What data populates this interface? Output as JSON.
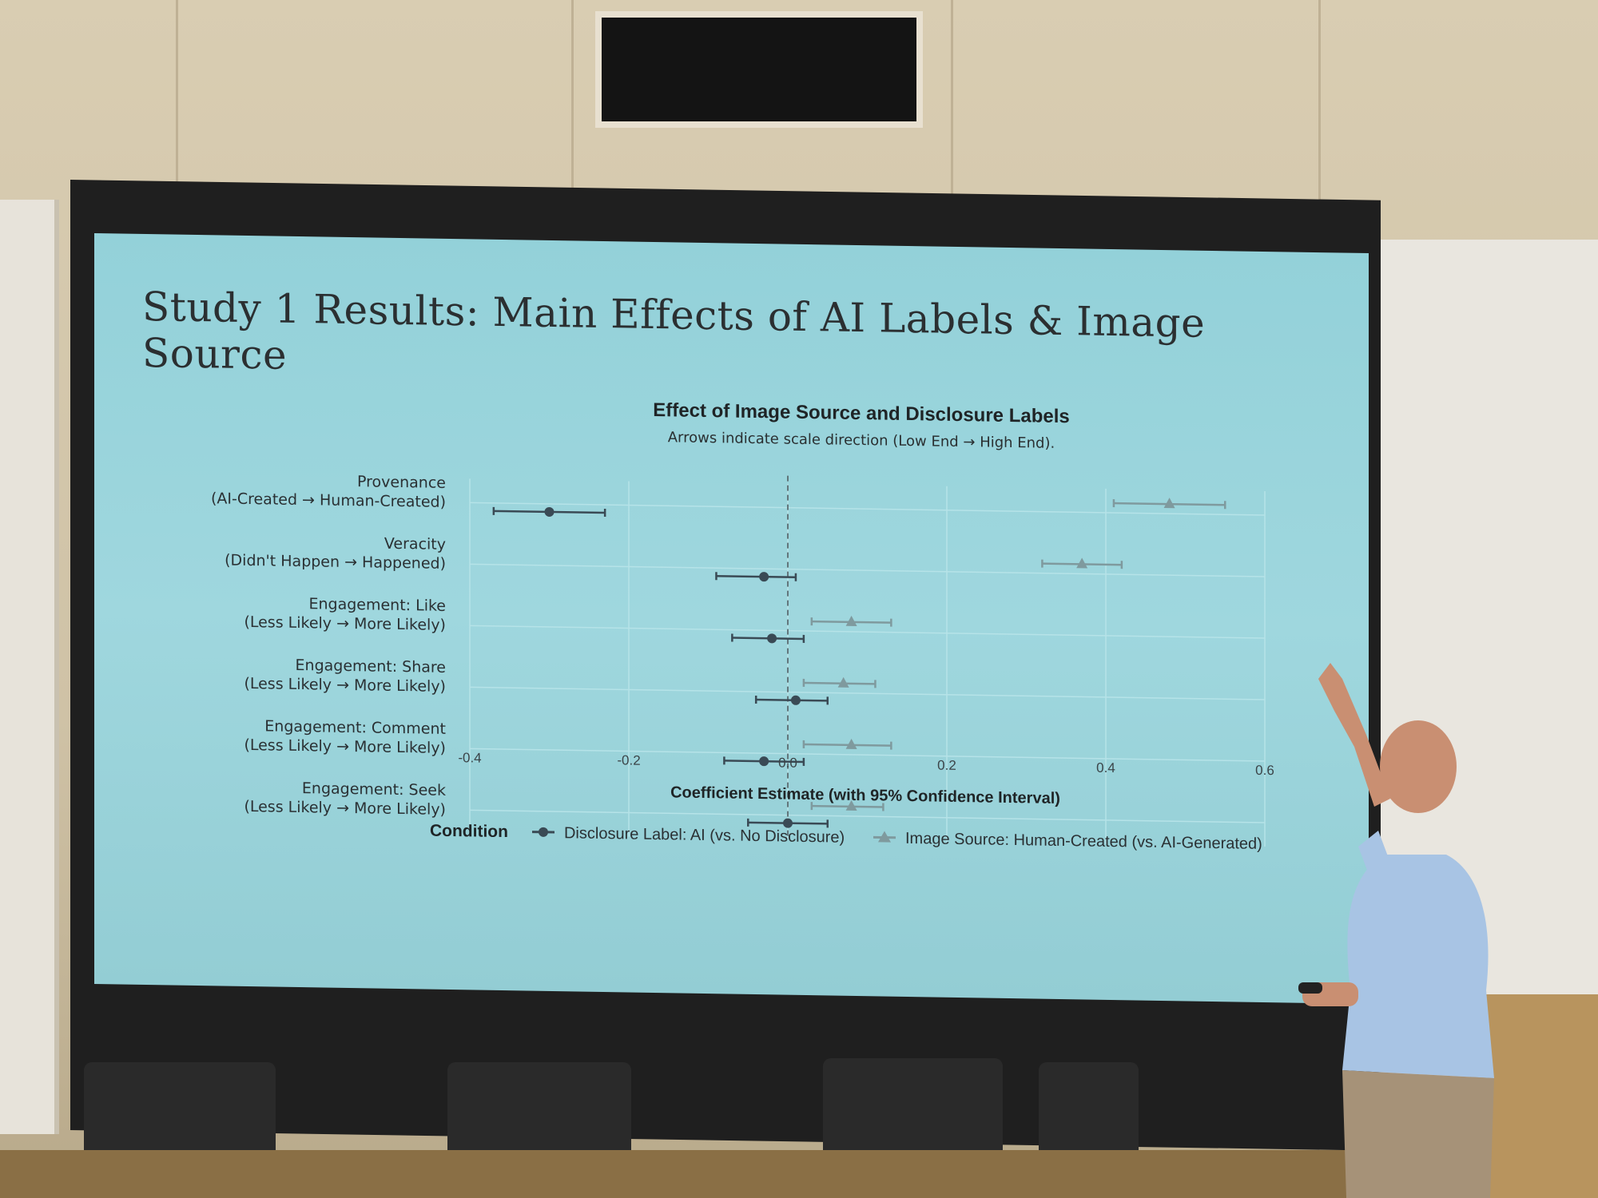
{
  "slide": {
    "title": "Study 1 Results: Main Effects of AI Labels & Image Source"
  },
  "chart_data": {
    "type": "scatter",
    "title": "Effect of Image Source and Disclosure Labels",
    "subtitle": "Arrows indicate scale direction (Low End → High End).",
    "xlabel": "Coefficient Estimate (with 95% Confidence Interval)",
    "xlim": [
      -0.4,
      0.6
    ],
    "xticks": [
      "-0.4",
      "-0.2",
      "0.0",
      "0.2",
      "0.4",
      "0.6"
    ],
    "xtick_values": [
      -0.4,
      -0.2,
      0.0,
      0.2,
      0.4,
      0.6
    ],
    "reference_line": 0.0,
    "grid": true,
    "categories": [
      {
        "name": "Provenance",
        "scale": "(AI-Created → Human-Created)"
      },
      {
        "name": "Veracity",
        "scale": "(Didn't Happen → Happened)"
      },
      {
        "name": "Engagement: Like",
        "scale": "(Less Likely → More Likely)"
      },
      {
        "name": "Engagement: Share",
        "scale": "(Less Likely → More Likely)"
      },
      {
        "name": "Engagement: Comment",
        "scale": "(Less Likely → More Likely)"
      },
      {
        "name": "Engagement: Seek",
        "scale": "(Less Likely → More Likely)"
      }
    ],
    "legend_title": "Condition",
    "legend_position": "bottom",
    "series": [
      {
        "name": "Disclosure Label: AI (vs. No Disclosure)",
        "marker": "circle",
        "color": "#3a4a55",
        "estimates": [
          -0.3,
          -0.03,
          -0.02,
          0.01,
          -0.03,
          0.0
        ],
        "ci_low": [
          -0.37,
          -0.09,
          -0.07,
          -0.04,
          -0.08,
          -0.05
        ],
        "ci_high": [
          -0.23,
          0.01,
          0.02,
          0.05,
          0.02,
          0.05
        ]
      },
      {
        "name": "Image Source: Human-Created (vs. AI-Generated)",
        "marker": "triangle",
        "color": "#7f9a9e",
        "estimates": [
          0.48,
          0.37,
          0.08,
          0.07,
          0.08,
          0.08
        ],
        "ci_low": [
          0.41,
          0.32,
          0.03,
          0.02,
          0.02,
          0.03
        ],
        "ci_high": [
          0.55,
          0.42,
          0.13,
          0.11,
          0.13,
          0.12
        ]
      }
    ]
  }
}
